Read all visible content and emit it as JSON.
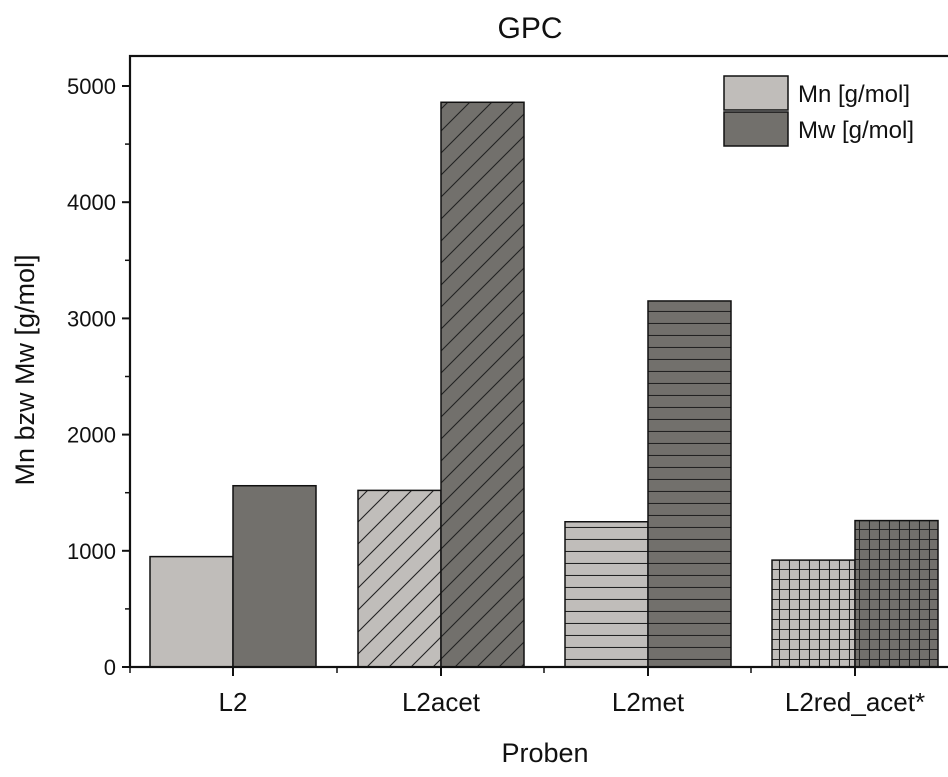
{
  "chart_data": {
    "type": "bar",
    "title": "GPC",
    "xlabel": "Proben",
    "ylabel": "Mn bzw Mw [g/mol]",
    "categories": [
      "L2",
      "L2acet",
      "L2met",
      "L2red_acet*"
    ],
    "series": [
      {
        "name": "Mn [g/mol]",
        "color": "#c0bdba",
        "values": [
          950,
          1520,
          1250,
          920
        ],
        "patterns": [
          "solid",
          "diagonal",
          "horizontal",
          "grid"
        ]
      },
      {
        "name": "Mw [g/mol]",
        "color": "#72706c",
        "values": [
          1560,
          4860,
          3150,
          1260
        ],
        "patterns": [
          "solid",
          "diagonal",
          "horizontal",
          "grid"
        ]
      }
    ],
    "ylim": [
      0,
      5200
    ],
    "yticks": [
      0,
      1000,
      2000,
      3000,
      4000,
      5000
    ],
    "ytick_labels": [
      "0",
      "1000",
      "2000",
      "3000",
      "4000",
      "5000"
    ],
    "grid": false,
    "legend_position": "top-right"
  }
}
